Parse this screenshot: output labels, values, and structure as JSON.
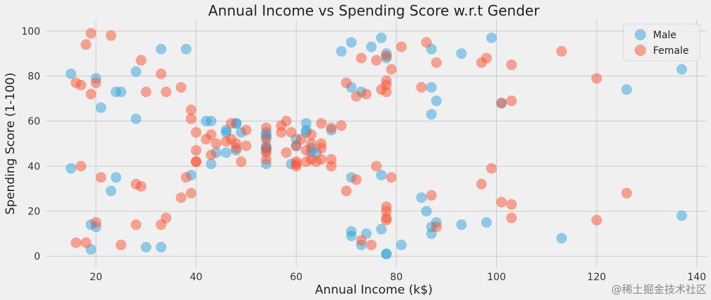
{
  "chart_data": {
    "type": "scatter",
    "title": "Annual Income vs Spending Score w.r.t Gender",
    "xlabel": "Annual Income (k$)",
    "ylabel": "Spending Score (1-100)",
    "xlim": [
      10,
      142
    ],
    "ylim": [
      -5,
      105
    ],
    "xticks": [
      20,
      40,
      60,
      80,
      100,
      120,
      140
    ],
    "yticks": [
      0,
      20,
      40,
      60,
      80,
      100
    ],
    "grid": true,
    "legend_position": "top-right",
    "series": [
      {
        "name": "Male",
        "color": "#30a2da",
        "points": [
          [
            15,
            39
          ],
          [
            15,
            81
          ],
          [
            19,
            3
          ],
          [
            19,
            14
          ],
          [
            20,
            13
          ],
          [
            20,
            79
          ],
          [
            21,
            66
          ],
          [
            23,
            29
          ],
          [
            24,
            35
          ],
          [
            24,
            73
          ],
          [
            25,
            73
          ],
          [
            28,
            82
          ],
          [
            28,
            61
          ],
          [
            30,
            4
          ],
          [
            33,
            92
          ],
          [
            33,
            4
          ],
          [
            38,
            92
          ],
          [
            39,
            36
          ],
          [
            42,
            60
          ],
          [
            43,
            60
          ],
          [
            43,
            41
          ],
          [
            44,
            46
          ],
          [
            46,
            46
          ],
          [
            46,
            55
          ],
          [
            46,
            56
          ],
          [
            48,
            59
          ],
          [
            48,
            59
          ],
          [
            48,
            47
          ],
          [
            49,
            55
          ],
          [
            54,
            41
          ],
          [
            54,
            47
          ],
          [
            54,
            48
          ],
          [
            54,
            49
          ],
          [
            54,
            53
          ],
          [
            54,
            54
          ],
          [
            54,
            55
          ],
          [
            59,
            41
          ],
          [
            60,
            49
          ],
          [
            60,
            52
          ],
          [
            62,
            55
          ],
          [
            62,
            56
          ],
          [
            62,
            59
          ],
          [
            63,
            46
          ],
          [
            63,
            48
          ],
          [
            64,
            46
          ],
          [
            67,
            56
          ],
          [
            69,
            91
          ],
          [
            71,
            95
          ],
          [
            71,
            75
          ],
          [
            71,
            35
          ],
          [
            71,
            9
          ],
          [
            71,
            11
          ],
          [
            73,
            5
          ],
          [
            73,
            73
          ],
          [
            74,
            10
          ],
          [
            75,
            93
          ],
          [
            77,
            97
          ],
          [
            77,
            36
          ],
          [
            77,
            12
          ],
          [
            78,
            1
          ],
          [
            78,
            1
          ],
          [
            78,
            88
          ],
          [
            78,
            90
          ],
          [
            81,
            5
          ],
          [
            85,
            26
          ],
          [
            86,
            20
          ],
          [
            87,
            63
          ],
          [
            87,
            75
          ],
          [
            87,
            92
          ],
          [
            87,
            13
          ],
          [
            87,
            10
          ],
          [
            88,
            15
          ],
          [
            88,
            69
          ],
          [
            93,
            14
          ],
          [
            93,
            90
          ],
          [
            98,
            15
          ],
          [
            99,
            97
          ],
          [
            101,
            68
          ],
          [
            113,
            8
          ],
          [
            126,
            74
          ],
          [
            137,
            18
          ],
          [
            137,
            83
          ]
        ]
      },
      {
        "name": "Female",
        "color": "#fc4f30",
        "points": [
          [
            16,
            6
          ],
          [
            16,
            77
          ],
          [
            17,
            40
          ],
          [
            17,
            76
          ],
          [
            18,
            6
          ],
          [
            18,
            94
          ],
          [
            19,
            72
          ],
          [
            19,
            99
          ],
          [
            20,
            15
          ],
          [
            20,
            77
          ],
          [
            21,
            35
          ],
          [
            23,
            98
          ],
          [
            25,
            5
          ],
          [
            28,
            14
          ],
          [
            28,
            32
          ],
          [
            29,
            31
          ],
          [
            29,
            87
          ],
          [
            30,
            73
          ],
          [
            33,
            14
          ],
          [
            33,
            81
          ],
          [
            34,
            17
          ],
          [
            34,
            73
          ],
          [
            37,
            26
          ],
          [
            37,
            75
          ],
          [
            38,
            35
          ],
          [
            39,
            61
          ],
          [
            39,
            28
          ],
          [
            39,
            65
          ],
          [
            40,
            55
          ],
          [
            40,
            47
          ],
          [
            40,
            42
          ],
          [
            40,
            42
          ],
          [
            42,
            52
          ],
          [
            43,
            54
          ],
          [
            43,
            45
          ],
          [
            44,
            50
          ],
          [
            46,
            51
          ],
          [
            47,
            59
          ],
          [
            47,
            52
          ],
          [
            48,
            50
          ],
          [
            48,
            48
          ],
          [
            49,
            42
          ],
          [
            50,
            49
          ],
          [
            50,
            56
          ],
          [
            54,
            46
          ],
          [
            54,
            43
          ],
          [
            54,
            48
          ],
          [
            54,
            52
          ],
          [
            54,
            57
          ],
          [
            57,
            55
          ],
          [
            57,
            58
          ],
          [
            58,
            60
          ],
          [
            58,
            46
          ],
          [
            59,
            55
          ],
          [
            60,
            41
          ],
          [
            60,
            49
          ],
          [
            60,
            40
          ],
          [
            60,
            42
          ],
          [
            61,
            52
          ],
          [
            62,
            47
          ],
          [
            62,
            42
          ],
          [
            63,
            50
          ],
          [
            63,
            54
          ],
          [
            63,
            43
          ],
          [
            64,
            42
          ],
          [
            65,
            48
          ],
          [
            65,
            50
          ],
          [
            65,
            43
          ],
          [
            65,
            59
          ],
          [
            67,
            57
          ],
          [
            67,
            43
          ],
          [
            67,
            40
          ],
          [
            69,
            58
          ],
          [
            70,
            29
          ],
          [
            70,
            77
          ],
          [
            72,
            71
          ],
          [
            72,
            34
          ],
          [
            73,
            88
          ],
          [
            73,
            7
          ],
          [
            74,
            72
          ],
          [
            75,
            5
          ],
          [
            76,
            40
          ],
          [
            76,
            87
          ],
          [
            77,
            74
          ],
          [
            78,
            22
          ],
          [
            78,
            17
          ],
          [
            78,
            20
          ],
          [
            78,
            16
          ],
          [
            78,
            76
          ],
          [
            78,
            78
          ],
          [
            78,
            73
          ],
          [
            78,
            89
          ],
          [
            79,
            35
          ],
          [
            79,
            83
          ],
          [
            81,
            93
          ],
          [
            85,
            75
          ],
          [
            86,
            95
          ],
          [
            87,
            27
          ],
          [
            88,
            86
          ],
          [
            88,
            13
          ],
          [
            97,
            32
          ],
          [
            97,
            86
          ],
          [
            98,
            88
          ],
          [
            99,
            39
          ],
          [
            101,
            24
          ],
          [
            101,
            68
          ],
          [
            103,
            17
          ],
          [
            103,
            85
          ],
          [
            103,
            23
          ],
          [
            103,
            69
          ],
          [
            113,
            91
          ],
          [
            120,
            16
          ],
          [
            120,
            79
          ],
          [
            126,
            28
          ]
        ]
      }
    ]
  },
  "watermark": "@稀土掘金技术社区"
}
